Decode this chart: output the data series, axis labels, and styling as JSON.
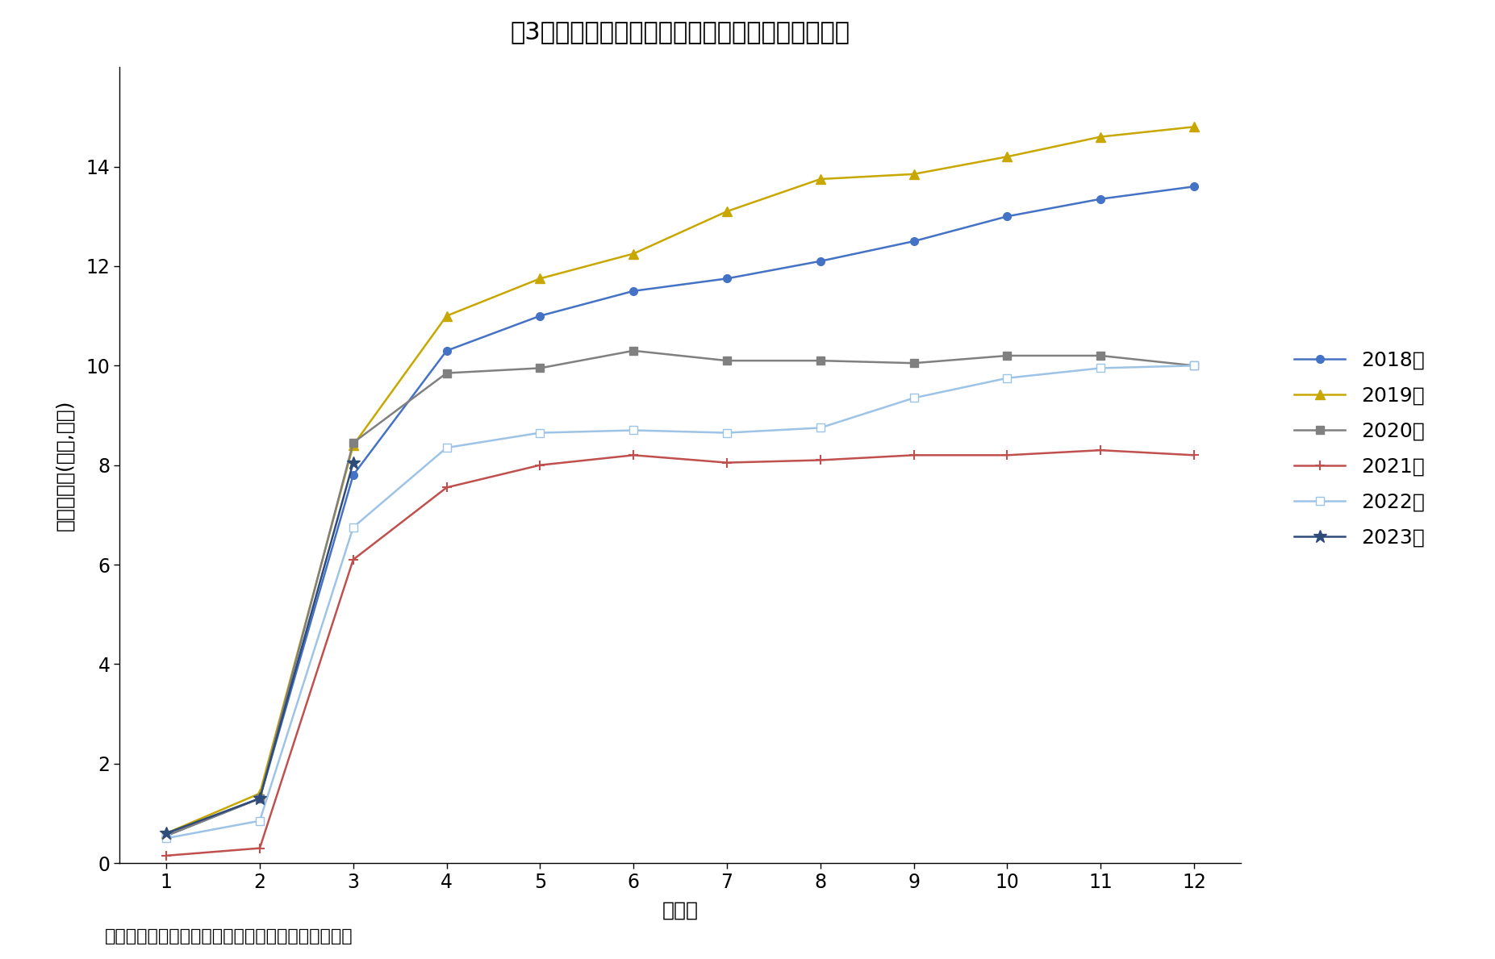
{
  "title": "図3　地方から東京圈への転入超過数（月次累計）",
  "xlabel": "（月）",
  "ylabel": "転入超過数(万人,累計)",
  "source": "出所：総務省統計局「住民基本台帳人口移動報告」",
  "months": [
    1,
    2,
    3,
    4,
    5,
    6,
    7,
    8,
    9,
    10,
    11,
    12
  ],
  "series": [
    {
      "label": "2018年",
      "color": "#4472C4",
      "marker": "o",
      "marker_facecolor": "#4472C4",
      "marker_edgecolor": "#4472C4",
      "linewidth": 1.8,
      "data": [
        0.55,
        1.3,
        7.8,
        10.3,
        11.0,
        11.5,
        11.75,
        12.1,
        12.5,
        13.0,
        13.35,
        13.6
      ]
    },
    {
      "label": "2019年",
      "color": "#C8A800",
      "marker": "^",
      "marker_facecolor": "#C8A800",
      "marker_edgecolor": "#C8A800",
      "linewidth": 1.8,
      "data": [
        0.6,
        1.4,
        8.4,
        11.0,
        11.75,
        12.25,
        13.1,
        13.75,
        13.85,
        14.2,
        14.6,
        14.8
      ]
    },
    {
      "label": "2020年",
      "color": "#808080",
      "marker": "s",
      "marker_facecolor": "#808080",
      "marker_edgecolor": "#808080",
      "linewidth": 1.8,
      "data": [
        0.55,
        1.3,
        8.45,
        9.85,
        9.95,
        10.3,
        10.1,
        10.1,
        10.05,
        10.2,
        10.2,
        10.0
      ]
    },
    {
      "label": "2021年",
      "color": "#C0504D",
      "marker": "P",
      "marker_facecolor": "#C0504D",
      "marker_edgecolor": "#C0504D",
      "linewidth": 1.8,
      "data": [
        0.15,
        0.3,
        6.1,
        7.55,
        8.0,
        8.2,
        8.05,
        8.1,
        8.2,
        8.2,
        8.3,
        8.2
      ]
    },
    {
      "label": "2022年",
      "color": "#9DC3E6",
      "marker": "s",
      "marker_facecolor": "white",
      "marker_edgecolor": "#9DC3E6",
      "linewidth": 1.8,
      "data": [
        0.5,
        0.85,
        6.75,
        8.35,
        8.65,
        8.7,
        8.65,
        8.75,
        9.35,
        9.75,
        9.95,
        10.0
      ]
    },
    {
      "label": "2023年",
      "color": "#2E4B7A",
      "marker": "*",
      "marker_facecolor": "#2E4B7A",
      "marker_edgecolor": "#2E4B7A",
      "linewidth": 1.8,
      "data": [
        0.6,
        1.3,
        8.05,
        null,
        null,
        null,
        null,
        null,
        null,
        null,
        null,
        null
      ]
    }
  ],
  "ylim": [
    0,
    16
  ],
  "yticks": [
    0,
    2,
    4,
    6,
    8,
    10,
    12,
    14
  ],
  "background_color": "#ffffff",
  "title_fontsize": 22,
  "label_fontsize": 18,
  "tick_fontsize": 17,
  "legend_fontsize": 18,
  "source_fontsize": 16
}
